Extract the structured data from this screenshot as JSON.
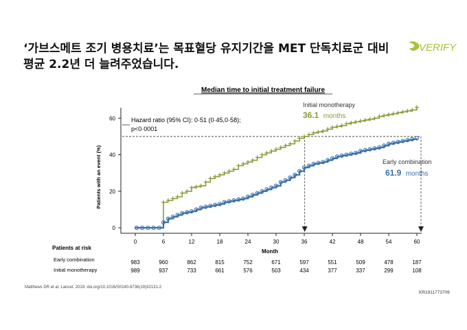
{
  "slide": {
    "title_line1": "‘가브스메트 조기 병용치료’는 목표혈당 유지기간을 MET 단독치료군 대비",
    "title_line2": "평균 2.2년 더 늘려주었습니다.",
    "logo_text": "VERIFY",
    "footnote": "Matthews DR et al. Lancet. 2019. doi.org/10.1016/S0140-6736(19)32131-2",
    "code": "KR1911773709"
  },
  "colors": {
    "initial_monotherapy": "#8a9a36",
    "early_combination": "#3a6ea8",
    "logo_green": "#a8c23a",
    "axis": "#222222"
  },
  "chart_data": {
    "type": "line",
    "title": "Median time to initial treatment failure",
    "xlabel": "Month",
    "ylabel": "Patients with an event (%)",
    "xlim": [
      0,
      60
    ],
    "ylim": [
      0,
      65
    ],
    "x_ticks": [
      0,
      6,
      12,
      18,
      24,
      30,
      36,
      42,
      48,
      54,
      60
    ],
    "y_ticks": [
      0,
      20,
      40,
      60
    ],
    "hazard_ratio_line1": "Hazard ratio (95% CI): 0·51 (0·45,0·58);",
    "hazard_ratio_line2": "p<0·0001",
    "median_reference_y": 50,
    "series": [
      {
        "name": "Initial monotherapy",
        "median_value": "36.1",
        "median_unit": "months",
        "median_x": 36.1,
        "points": [
          [
            0,
            0
          ],
          [
            5,
            0
          ],
          [
            6,
            14
          ],
          [
            7,
            15
          ],
          [
            8,
            16
          ],
          [
            9,
            17
          ],
          [
            10,
            19
          ],
          [
            11,
            20
          ],
          [
            12,
            22
          ],
          [
            13,
            22.5
          ],
          [
            14,
            23
          ],
          [
            15,
            25
          ],
          [
            16,
            27
          ],
          [
            17,
            28
          ],
          [
            18,
            29
          ],
          [
            19,
            30
          ],
          [
            20,
            31
          ],
          [
            21,
            32
          ],
          [
            22,
            34
          ],
          [
            23,
            35
          ],
          [
            24,
            36
          ],
          [
            25,
            37
          ],
          [
            26,
            38.5
          ],
          [
            27,
            40
          ],
          [
            28,
            41
          ],
          [
            29,
            42
          ],
          [
            30,
            43
          ],
          [
            31,
            44
          ],
          [
            32,
            45
          ],
          [
            33,
            46
          ],
          [
            34,
            47.5
          ],
          [
            35,
            49
          ],
          [
            36,
            50
          ],
          [
            37,
            51
          ],
          [
            38,
            52
          ],
          [
            39,
            52.5
          ],
          [
            40,
            53
          ],
          [
            41,
            54
          ],
          [
            42,
            55
          ],
          [
            43,
            55.5
          ],
          [
            44,
            56
          ],
          [
            45,
            57
          ],
          [
            46,
            57.5
          ],
          [
            47,
            58
          ],
          [
            48,
            58.5
          ],
          [
            49,
            59
          ],
          [
            50,
            59.5
          ],
          [
            51,
            60
          ],
          [
            52,
            61
          ],
          [
            53,
            61.5
          ],
          [
            54,
            62
          ],
          [
            55,
            62.5
          ],
          [
            56,
            63
          ],
          [
            57,
            63.5
          ],
          [
            58,
            64
          ],
          [
            59,
            64.5
          ],
          [
            60,
            66
          ]
        ]
      },
      {
        "name": "Early combination",
        "median_value": "61.9",
        "median_unit": "months",
        "median_x": 60,
        "points": [
          [
            0,
            0
          ],
          [
            5,
            0
          ],
          [
            6,
            3
          ],
          [
            7,
            5
          ],
          [
            8,
            6
          ],
          [
            9,
            7
          ],
          [
            10,
            8
          ],
          [
            11,
            8.5
          ],
          [
            12,
            9
          ],
          [
            13,
            10
          ],
          [
            14,
            11
          ],
          [
            15,
            11.5
          ],
          [
            16,
            12
          ],
          [
            17,
            12.5
          ],
          [
            18,
            13
          ],
          [
            19,
            14
          ],
          [
            20,
            14.5
          ],
          [
            21,
            15
          ],
          [
            22,
            15.5
          ],
          [
            23,
            16
          ],
          [
            24,
            17
          ],
          [
            25,
            18
          ],
          [
            26,
            19
          ],
          [
            27,
            20
          ],
          [
            28,
            21
          ],
          [
            29,
            22
          ],
          [
            30,
            23
          ],
          [
            31,
            25
          ],
          [
            32,
            26
          ],
          [
            33,
            27.5
          ],
          [
            34,
            29
          ],
          [
            35,
            31
          ],
          [
            36,
            33
          ],
          [
            37,
            34
          ],
          [
            38,
            35
          ],
          [
            39,
            35.5
          ],
          [
            40,
            36
          ],
          [
            41,
            37
          ],
          [
            42,
            38
          ],
          [
            43,
            39
          ],
          [
            44,
            39.5
          ],
          [
            45,
            40
          ],
          [
            46,
            40.5
          ],
          [
            47,
            41
          ],
          [
            48,
            42
          ],
          [
            49,
            42.5
          ],
          [
            50,
            43
          ],
          [
            51,
            43.5
          ],
          [
            52,
            44
          ],
          [
            53,
            45
          ],
          [
            54,
            46
          ],
          [
            55,
            46.5
          ],
          [
            56,
            47
          ],
          [
            57,
            47.5
          ],
          [
            58,
            48
          ],
          [
            59,
            48.5
          ],
          [
            60,
            49
          ]
        ]
      }
    ],
    "risk_table": {
      "header": "Patients at risk",
      "rows": [
        {
          "label": "Early combination",
          "values": [
            "983",
            "960",
            "862",
            "815",
            "752",
            "671",
            "597",
            "551",
            "509",
            "478",
            "187"
          ]
        },
        {
          "label": "Initial monotherapy",
          "values": [
            "989",
            "937",
            "733",
            "661",
            "576",
            "503",
            "434",
            "377",
            "337",
            "299",
            "108"
          ]
        }
      ]
    }
  }
}
